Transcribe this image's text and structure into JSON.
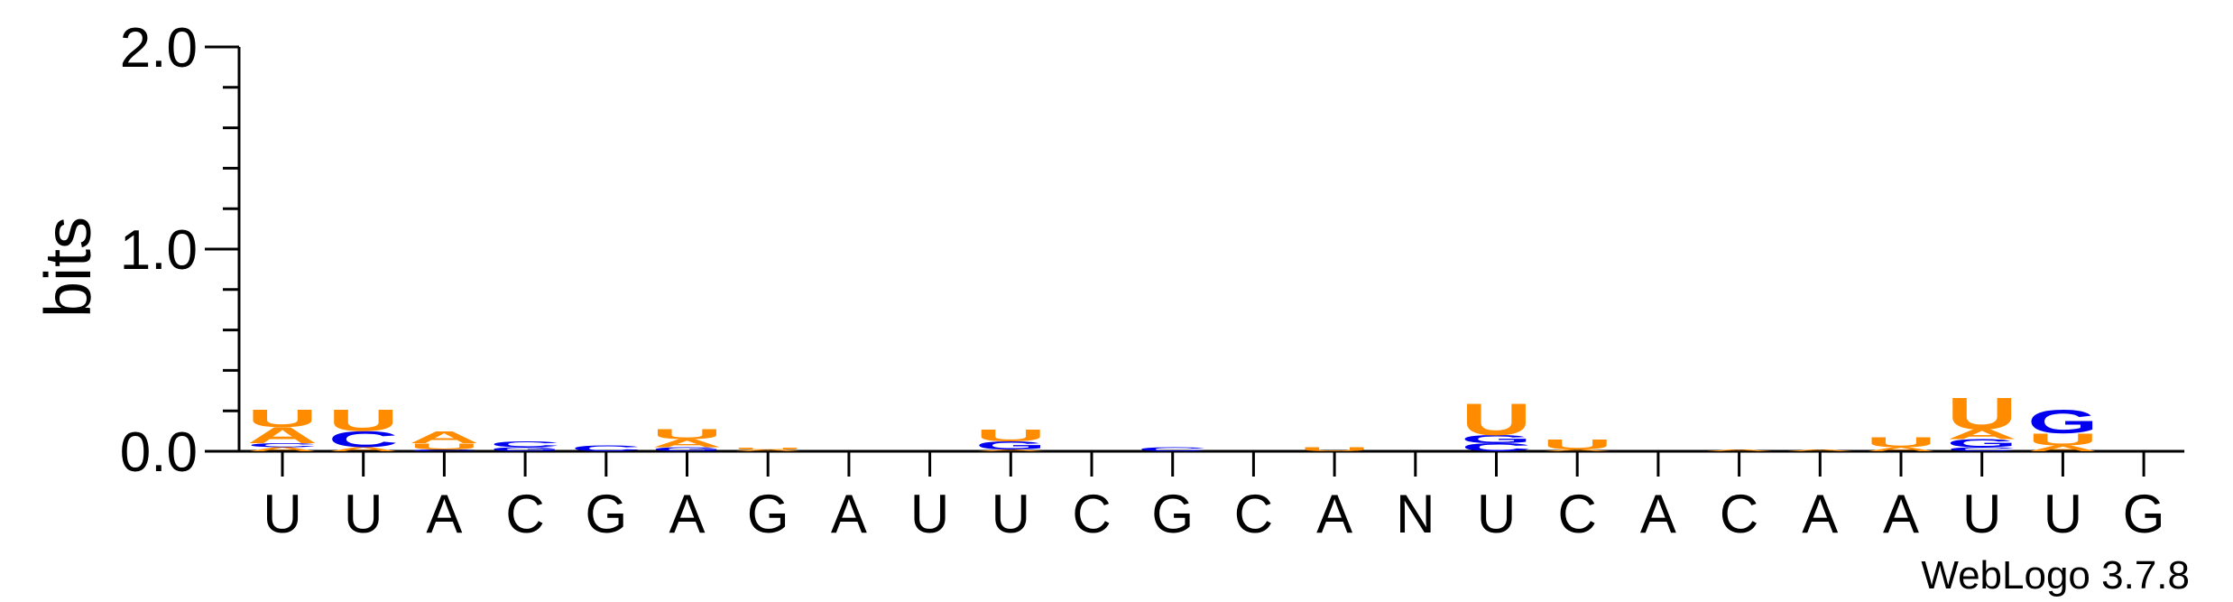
{
  "chart_data": {
    "type": "sequence-logo",
    "ylabel": "bits",
    "ylim": [
      0,
      2
    ],
    "yticks_major": [
      "0.0",
      "1.0",
      "2.0"
    ],
    "yticks_major_values": [
      0,
      1,
      2
    ],
    "yticks_minor_step": 0.2,
    "positions": [
      "U",
      "U",
      "A",
      "C",
      "G",
      "A",
      "G",
      "A",
      "U",
      "U",
      "C",
      "G",
      "C",
      "A",
      "N",
      "U",
      "C",
      "A",
      "C",
      "A",
      "A",
      "U",
      "U",
      "G"
    ],
    "colors": {
      "A": "#ff8c00",
      "U": "#ff8c00",
      "C": "#0000ee",
      "G": "#0000ee"
    },
    "stacks": [
      [
        {
          "l": "A",
          "h": 0.02
        },
        {
          "l": "C",
          "h": 0.02
        },
        {
          "l": "A",
          "h": 0.08
        },
        {
          "l": "U",
          "h": 0.09
        }
      ],
      [
        {
          "l": "A",
          "h": 0.02
        },
        {
          "l": "C",
          "h": 0.08
        },
        {
          "l": "U",
          "h": 0.11
        }
      ],
      [
        {
          "l": "C",
          "h": 0.01
        },
        {
          "l": "U",
          "h": 0.03
        },
        {
          "l": "A",
          "h": 0.06
        }
      ],
      [
        {
          "l": "G",
          "h": 0.02
        },
        {
          "l": "C",
          "h": 0.03
        }
      ],
      [
        {
          "l": "C",
          "h": 0.03
        }
      ],
      [
        {
          "l": "G",
          "h": 0.02
        },
        {
          "l": "A",
          "h": 0.04
        },
        {
          "l": "U",
          "h": 0.05
        }
      ],
      [
        {
          "l": "A",
          "h": 0.01
        },
        {
          "l": "U",
          "h": 0.01
        }
      ],
      [],
      [],
      [
        {
          "l": "A",
          "h": 0.01
        },
        {
          "l": "G",
          "h": 0.04
        },
        {
          "l": "U",
          "h": 0.06
        }
      ],
      [],
      [
        {
          "l": "C",
          "h": 0.02
        }
      ],
      [],
      [
        {
          "l": "U",
          "h": 0.02
        }
      ],
      [],
      [
        {
          "l": "C",
          "h": 0.04
        },
        {
          "l": "G",
          "h": 0.04
        },
        {
          "l": "U",
          "h": 0.16
        }
      ],
      [
        {
          "l": "A",
          "h": 0.01
        },
        {
          "l": "U",
          "h": 0.05
        }
      ],
      [],
      [
        {
          "l": "A",
          "h": 0.01
        }
      ],
      [
        {
          "l": "A",
          "h": 0.01
        }
      ],
      [
        {
          "l": "A",
          "h": 0.02
        },
        {
          "l": "U",
          "h": 0.05
        }
      ],
      [
        {
          "l": "C",
          "h": 0.02
        },
        {
          "l": "G",
          "h": 0.04
        },
        {
          "l": "A",
          "h": 0.05
        },
        {
          "l": "U",
          "h": 0.16
        }
      ],
      [
        {
          "l": "A",
          "h": 0.03
        },
        {
          "l": "U",
          "h": 0.06
        },
        {
          "l": "G",
          "h": 0.12
        }
      ],
      []
    ],
    "credit": "WebLogo 3.7.8"
  }
}
